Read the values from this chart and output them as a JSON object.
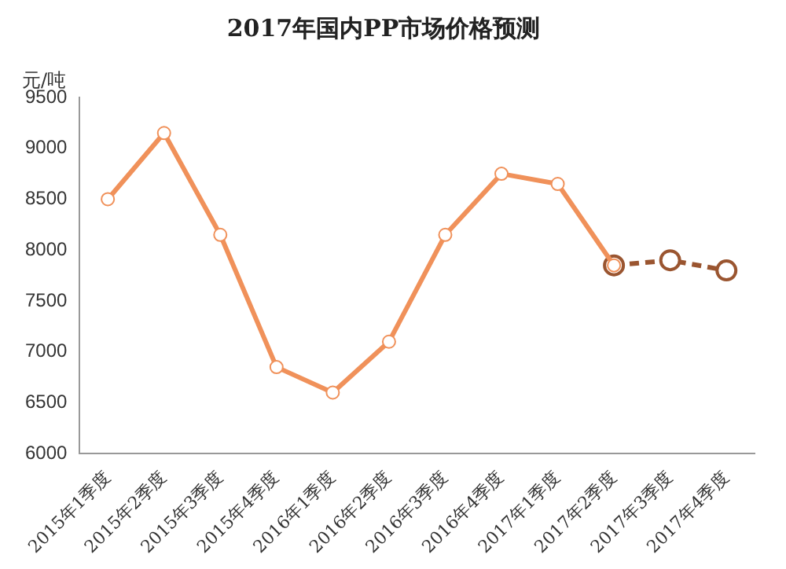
{
  "chart_data": {
    "type": "line",
    "title": "2017年国内PP市场价格预测",
    "ylabel": "元/吨",
    "categories": [
      "2015年1季度",
      "2015年2季度",
      "2015年3季度",
      "2015年4季度",
      "2016年1季度",
      "2016年2季度",
      "2016年3季度",
      "2016年4季度",
      "2017年1季度",
      "2017年2季度",
      "2017年3季度",
      "2017年4季度"
    ],
    "series": [
      {
        "color": "#f0915a",
        "line_style": "solid",
        "values": [
          8500,
          9150,
          8150,
          6850,
          6600,
          7100,
          8150,
          8750,
          8650,
          7850,
          null,
          null
        ]
      },
      {
        "color": "#9a5530",
        "line_style": "dashed",
        "values": [
          null,
          null,
          null,
          null,
          null,
          null,
          null,
          null,
          null,
          7850,
          7900,
          7800
        ]
      }
    ],
    "ylim": [
      6000,
      9500
    ],
    "yticks": [
      6000,
      6500,
      7000,
      7500,
      8000,
      8500,
      9000,
      9500
    ],
    "grid": false,
    "legend": false,
    "marker": "circle"
  }
}
